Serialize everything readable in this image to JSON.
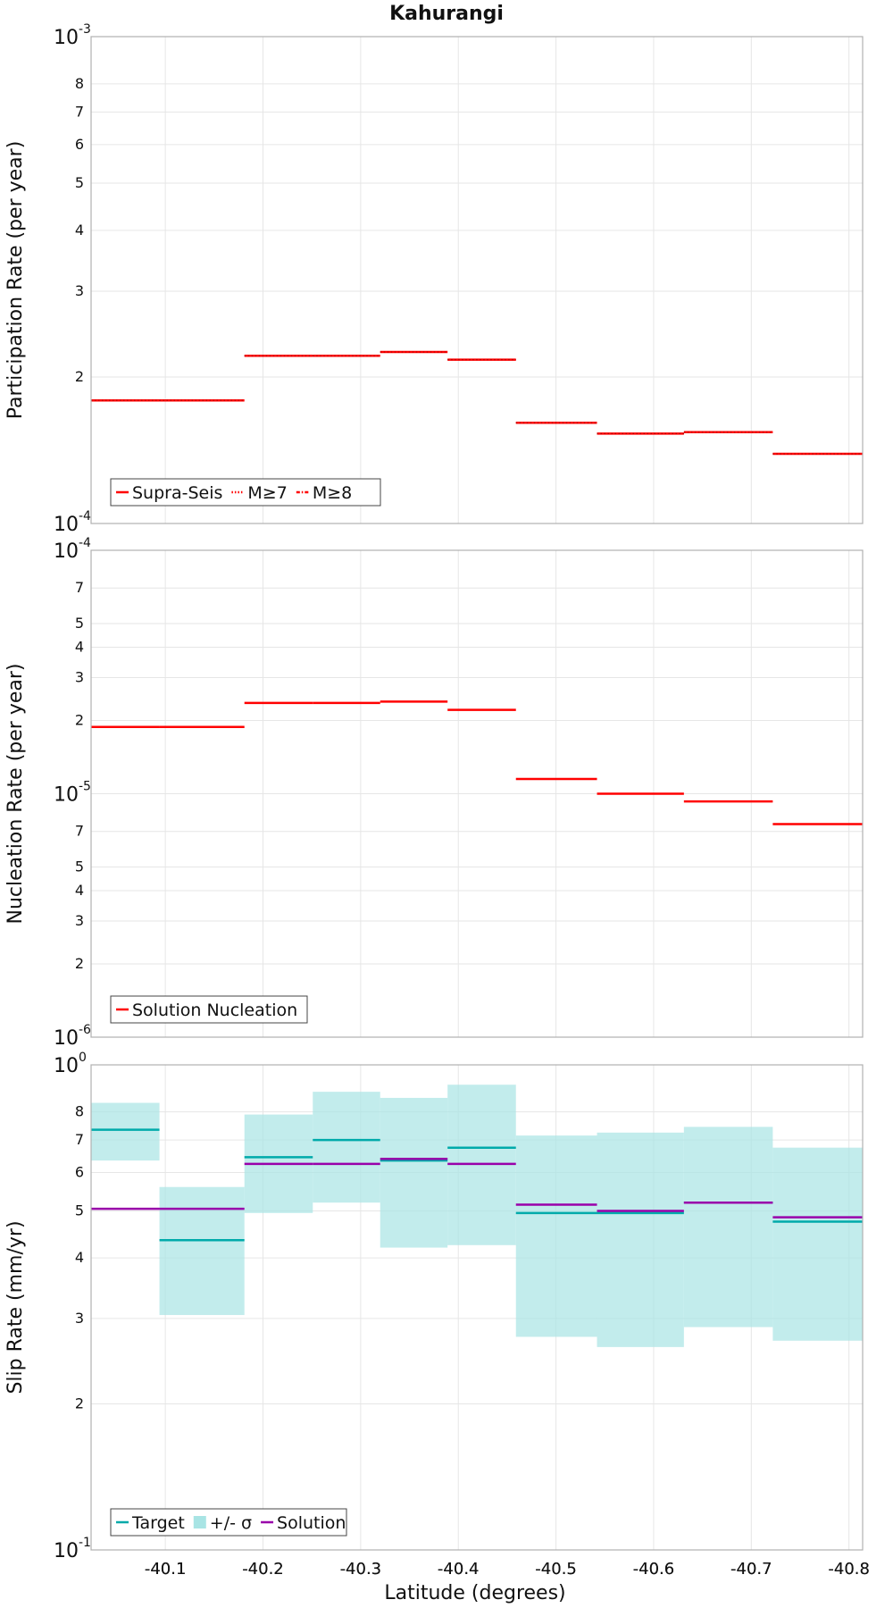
{
  "title": "Kahurangi",
  "xlabel": "Latitude (degrees)",
  "colors": {
    "red": "#ff0000",
    "cyan": "#00aaaa",
    "cyan_fill": "#a8e4e4",
    "purple": "#9900aa",
    "grid": "#e6e6e6",
    "frame": "#b0b0b0"
  },
  "chart_data": [
    {
      "type": "line",
      "panel": "participation",
      "ylabel": "Participation Rate (per year)",
      "yscale": "log",
      "ylim": [
        0.0001,
        0.001
      ],
      "xlim": [
        -40.024,
        -40.814
      ],
      "x_ticks": [
        -40.1,
        -40.2,
        -40.3,
        -40.4,
        -40.5,
        -40.6,
        -40.7,
        -40.8
      ],
      "x_tick_labels": [
        "-40.1",
        "-40.2",
        "-40.3",
        "-40.4",
        "-40.5",
        "-40.6",
        "-40.7",
        "-40.8"
      ],
      "y_major_ticks": [
        {
          "value": 0.0001,
          "base": "10",
          "exp": "-4"
        },
        {
          "value": 0.001,
          "base": "10",
          "exp": "-3"
        }
      ],
      "y_minor_ticks": [
        {
          "value": 0.0002,
          "label": "2"
        },
        {
          "value": 0.0003,
          "label": "3"
        },
        {
          "value": 0.0004,
          "label": "4"
        },
        {
          "value": 0.0005,
          "label": "5"
        },
        {
          "value": 0.0006,
          "label": "6"
        },
        {
          "value": 0.0007,
          "label": "7"
        },
        {
          "value": 0.0008,
          "label": "8"
        }
      ],
      "legend": [
        {
          "label": "Supra-Seis",
          "style": "solid",
          "color": "#ff0000"
        },
        {
          "label": "M≥7",
          "style": "dotted",
          "color": "#ff0000"
        },
        {
          "label": "M≥8",
          "style": "dashdot",
          "color": "#ff0000"
        }
      ],
      "series": [
        {
          "style": "solid-dotted",
          "segments": [
            {
              "x0": -40.024,
              "x1": -40.094,
              "y": 0.000179
            },
            {
              "x0": -40.094,
              "x1": -40.181,
              "y": 0.000179
            },
            {
              "x0": -40.181,
              "x1": -40.251,
              "y": 0.000221
            },
            {
              "x0": -40.251,
              "x1": -40.32,
              "y": 0.000221
            },
            {
              "x0": -40.32,
              "x1": -40.389,
              "y": 0.000225
            },
            {
              "x0": -40.389,
              "x1": -40.459,
              "y": 0.000217
            },
            {
              "x0": -40.459,
              "x1": -40.542,
              "y": 0.000161
            },
            {
              "x0": -40.542,
              "x1": -40.631,
              "y": 0.000153
            },
            {
              "x0": -40.631,
              "x1": -40.722,
              "y": 0.000154
            },
            {
              "x0": -40.722,
              "x1": -40.814,
              "y": 0.000139
            }
          ]
        }
      ]
    },
    {
      "type": "line",
      "panel": "nucleation",
      "ylabel": "Nucleation Rate (per year)",
      "yscale": "log",
      "ylim": [
        1e-06,
        0.0001
      ],
      "xlim": [
        -40.024,
        -40.814
      ],
      "x_ticks": [
        -40.1,
        -40.2,
        -40.3,
        -40.4,
        -40.5,
        -40.6,
        -40.7,
        -40.8
      ],
      "y_major_ticks": [
        {
          "value": 1e-06,
          "base": "10",
          "exp": "-6"
        },
        {
          "value": 1e-05,
          "base": "10",
          "exp": "-5"
        },
        {
          "value": 0.0001,
          "base": "10",
          "exp": "-4"
        }
      ],
      "y_minor_ticks": [
        {
          "value": 2e-06,
          "label": "2"
        },
        {
          "value": 3e-06,
          "label": "3"
        },
        {
          "value": 4e-06,
          "label": "4"
        },
        {
          "value": 5e-06,
          "label": "5"
        },
        {
          "value": 7e-06,
          "label": "7"
        },
        {
          "value": 2e-05,
          "label": "2"
        },
        {
          "value": 3e-05,
          "label": "3"
        },
        {
          "value": 4e-05,
          "label": "4"
        },
        {
          "value": 5e-05,
          "label": "5"
        },
        {
          "value": 7e-05,
          "label": "7"
        }
      ],
      "legend": [
        {
          "label": "Solution Nucleation",
          "style": "solid",
          "color": "#ff0000"
        }
      ],
      "series": [
        {
          "style": "solid",
          "segments": [
            {
              "x0": -40.024,
              "x1": -40.094,
              "y": 1.88e-05
            },
            {
              "x0": -40.094,
              "x1": -40.181,
              "y": 1.88e-05
            },
            {
              "x0": -40.181,
              "x1": -40.251,
              "y": 2.36e-05
            },
            {
              "x0": -40.251,
              "x1": -40.32,
              "y": 2.36e-05
            },
            {
              "x0": -40.32,
              "x1": -40.389,
              "y": 2.39e-05
            },
            {
              "x0": -40.389,
              "x1": -40.459,
              "y": 2.21e-05
            },
            {
              "x0": -40.459,
              "x1": -40.542,
              "y": 1.15e-05
            },
            {
              "x0": -40.542,
              "x1": -40.631,
              "y": 1e-05
            },
            {
              "x0": -40.631,
              "x1": -40.722,
              "y": 9.3e-06
            },
            {
              "x0": -40.722,
              "x1": -40.814,
              "y": 7.5e-06
            }
          ]
        }
      ]
    },
    {
      "type": "line",
      "panel": "slip",
      "ylabel": "Slip Rate (mm/yr)",
      "yscale": "log",
      "ylim": [
        0.1,
        1
      ],
      "xlim": [
        -40.024,
        -40.814
      ],
      "x_ticks": [
        -40.1,
        -40.2,
        -40.3,
        -40.4,
        -40.5,
        -40.6,
        -40.7,
        -40.8
      ],
      "y_major_ticks": [
        {
          "value": 0.1,
          "base": "10",
          "exp": "-1"
        },
        {
          "value": 1,
          "base": "10",
          "exp": "0"
        }
      ],
      "y_minor_ticks": [
        {
          "value": 0.2,
          "label": "2"
        },
        {
          "value": 0.3,
          "label": "3"
        },
        {
          "value": 0.4,
          "label": "4"
        },
        {
          "value": 0.5,
          "label": "5"
        },
        {
          "value": 0.6,
          "label": "6"
        },
        {
          "value": 0.7,
          "label": "7"
        },
        {
          "value": 0.8,
          "label": "8"
        }
      ],
      "legend": [
        {
          "label": "Target",
          "style": "solid",
          "color": "#00aaaa"
        },
        {
          "label": "+/- σ",
          "style": "fill",
          "color": "#a8e4e4"
        },
        {
          "label": "Solution",
          "style": "solid",
          "color": "#9900aa"
        }
      ],
      "bands": [
        {
          "x0": -40.024,
          "x1": -40.094,
          "lo": 0.635,
          "hi": 0.835
        },
        {
          "x0": -40.094,
          "x1": -40.181,
          "lo": 0.305,
          "hi": 0.56
        },
        {
          "x0": -40.181,
          "x1": -40.251,
          "lo": 0.495,
          "hi": 0.79
        },
        {
          "x0": -40.251,
          "x1": -40.32,
          "lo": 0.52,
          "hi": 0.88
        },
        {
          "x0": -40.32,
          "x1": -40.389,
          "lo": 0.42,
          "hi": 0.855
        },
        {
          "x0": -40.389,
          "x1": -40.459,
          "lo": 0.425,
          "hi": 0.91
        },
        {
          "x0": -40.459,
          "x1": -40.542,
          "lo": 0.275,
          "hi": 0.715
        },
        {
          "x0": -40.542,
          "x1": -40.631,
          "lo": 0.262,
          "hi": 0.725
        },
        {
          "x0": -40.631,
          "x1": -40.722,
          "lo": 0.288,
          "hi": 0.745
        },
        {
          "x0": -40.722,
          "x1": -40.814,
          "lo": 0.27,
          "hi": 0.675
        }
      ],
      "series": [
        {
          "name": "Target",
          "color": "#00aaaa",
          "segments": [
            {
              "x0": -40.024,
              "x1": -40.094,
              "y": 0.735
            },
            {
              "x0": -40.094,
              "x1": -40.181,
              "y": 0.435
            },
            {
              "x0": -40.181,
              "x1": -40.251,
              "y": 0.645
            },
            {
              "x0": -40.251,
              "x1": -40.32,
              "y": 0.7
            },
            {
              "x0": -40.32,
              "x1": -40.389,
              "y": 0.635
            },
            {
              "x0": -40.389,
              "x1": -40.459,
              "y": 0.675
            },
            {
              "x0": -40.459,
              "x1": -40.542,
              "y": 0.495
            },
            {
              "x0": -40.542,
              "x1": -40.631,
              "y": 0.495
            },
            {
              "x0": -40.631,
              "x1": -40.722,
              "y": 0.52
            },
            {
              "x0": -40.722,
              "x1": -40.814,
              "y": 0.475
            }
          ]
        },
        {
          "name": "Solution",
          "color": "#9900aa",
          "segments": [
            {
              "x0": -40.024,
              "x1": -40.094,
              "y": 0.505
            },
            {
              "x0": -40.094,
              "x1": -40.181,
              "y": 0.505
            },
            {
              "x0": -40.181,
              "x1": -40.251,
              "y": 0.625
            },
            {
              "x0": -40.251,
              "x1": -40.32,
              "y": 0.625
            },
            {
              "x0": -40.32,
              "x1": -40.389,
              "y": 0.64
            },
            {
              "x0": -40.389,
              "x1": -40.459,
              "y": 0.625
            },
            {
              "x0": -40.459,
              "x1": -40.542,
              "y": 0.515
            },
            {
              "x0": -40.542,
              "x1": -40.631,
              "y": 0.5
            },
            {
              "x0": -40.631,
              "x1": -40.722,
              "y": 0.52
            },
            {
              "x0": -40.722,
              "x1": -40.814,
              "y": 0.485
            }
          ]
        }
      ]
    }
  ]
}
